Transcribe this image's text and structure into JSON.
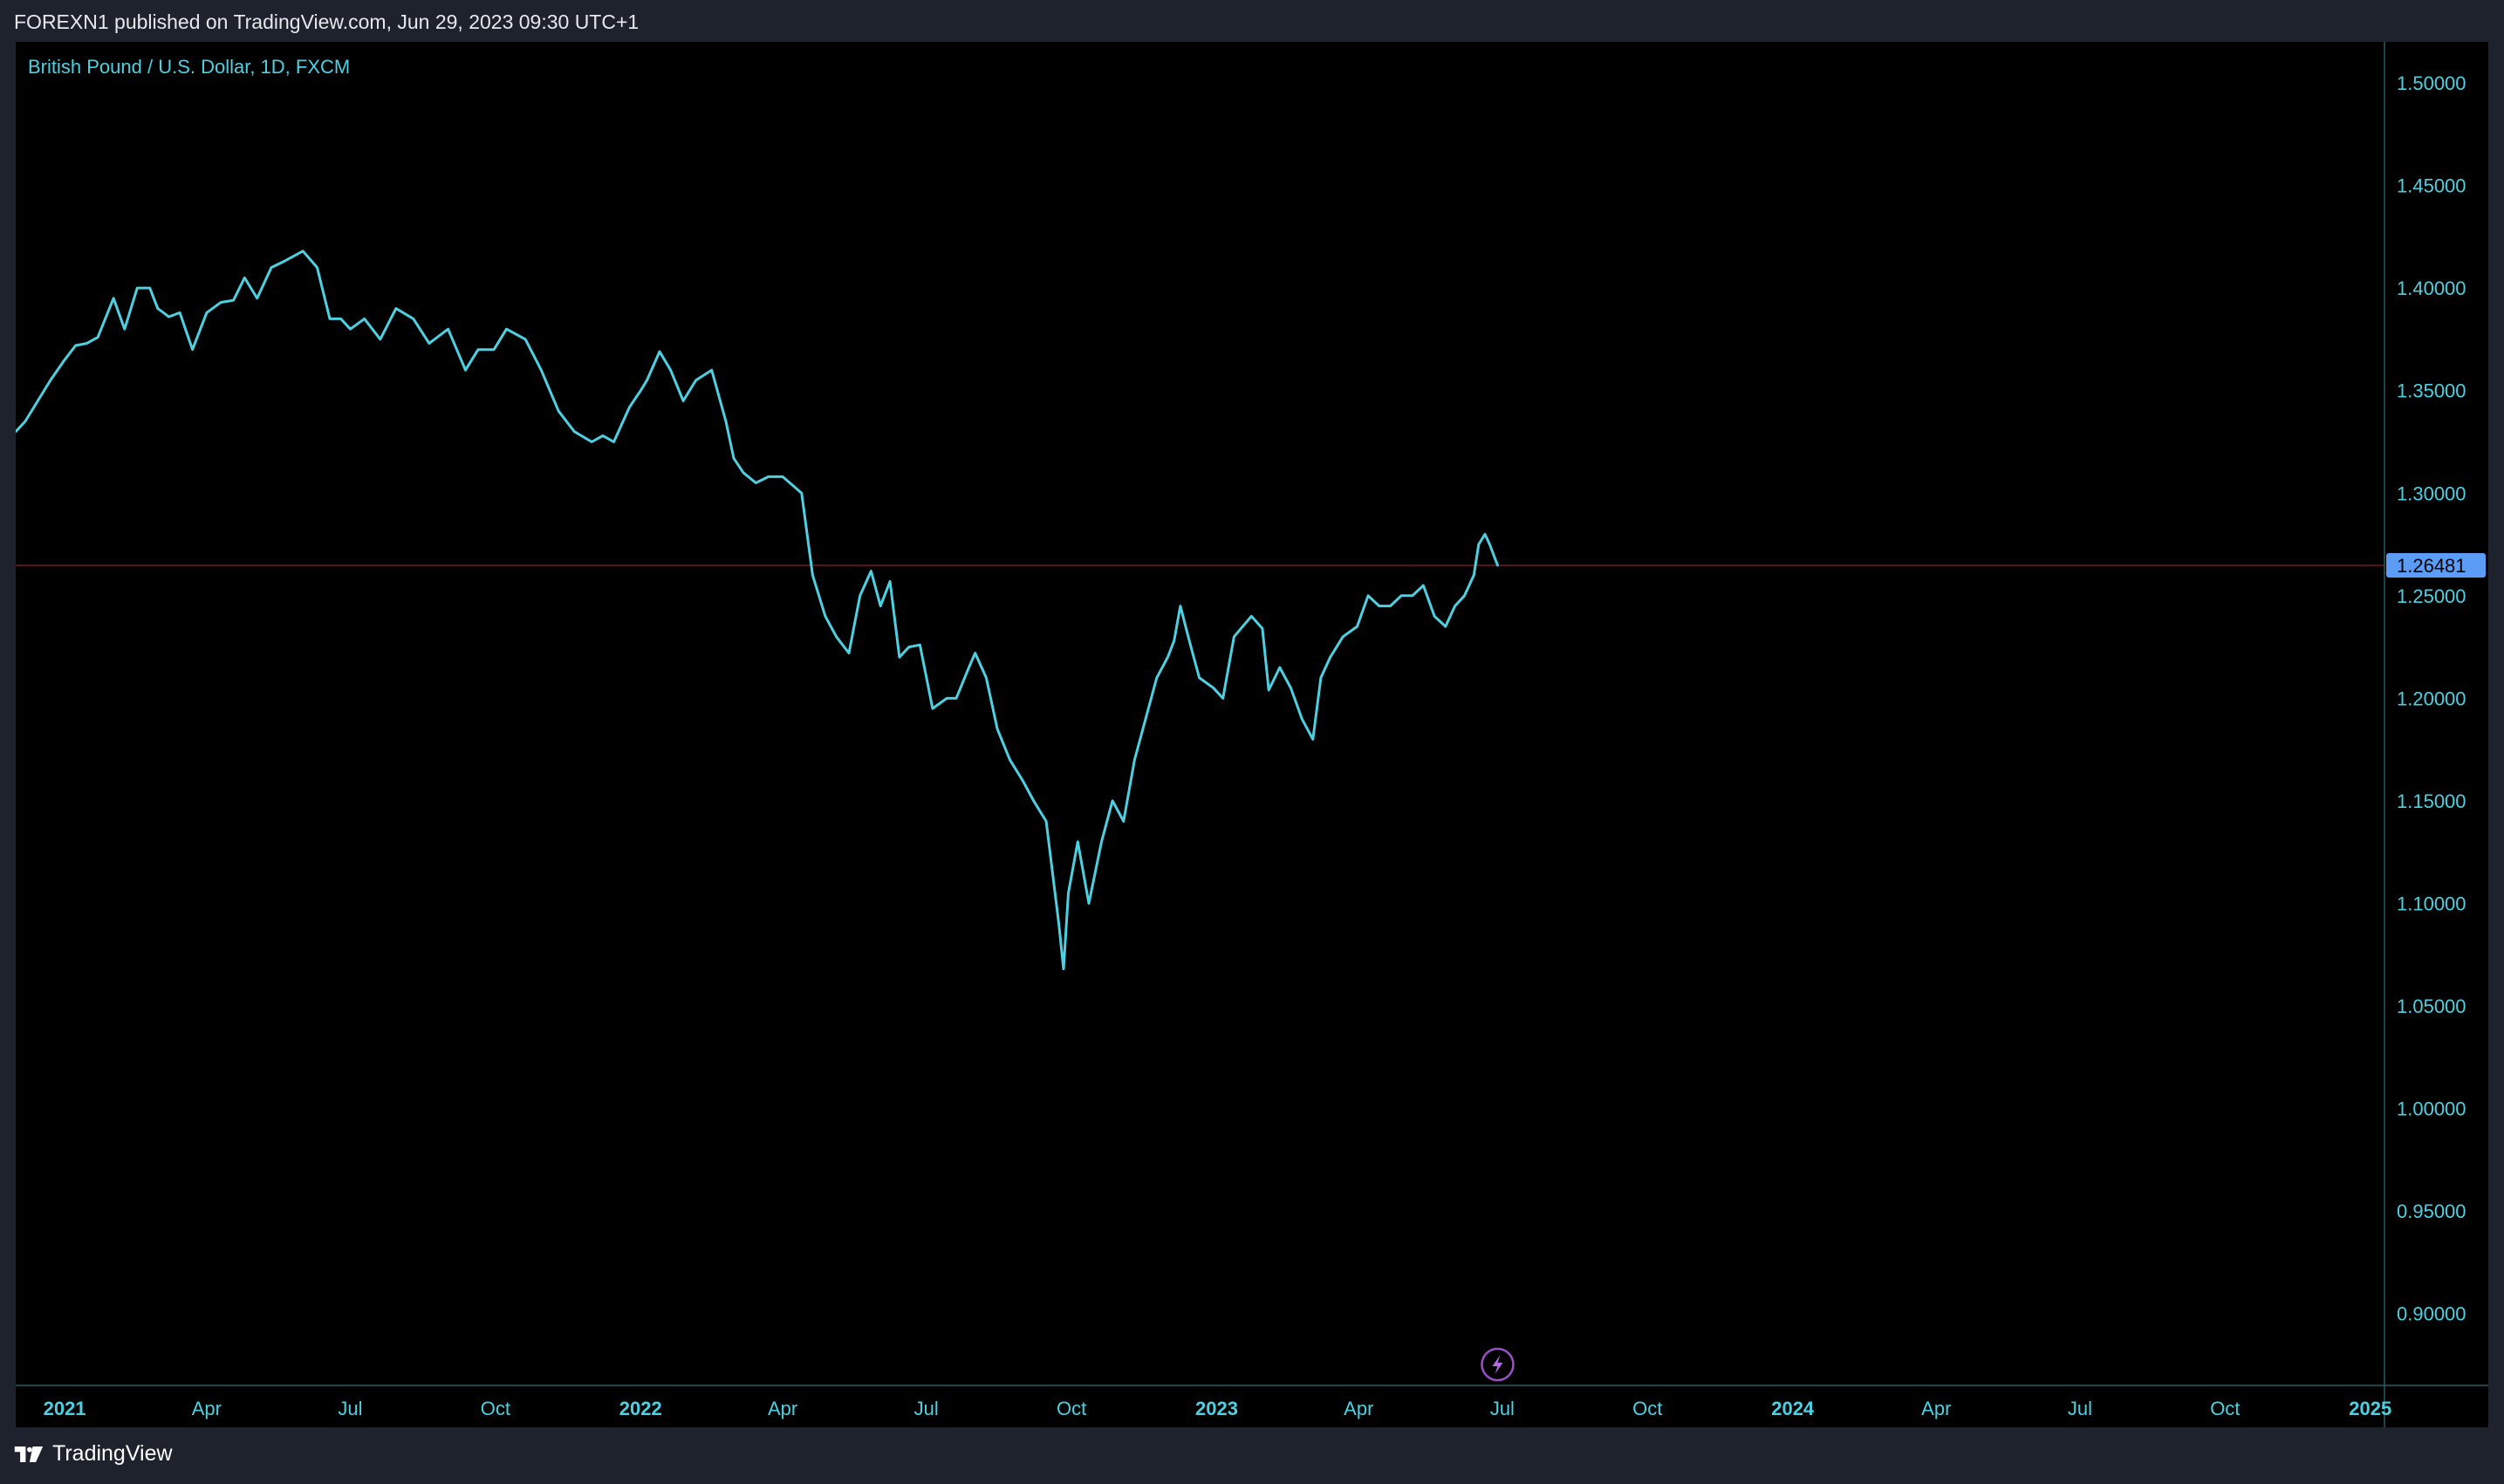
{
  "header": {
    "published_text": "FOREXN1 published on TradingView.com, Jun 29, 2023 09:30 UTC+1"
  },
  "footer": {
    "brand": "TradingView"
  },
  "colors": {
    "series": "#4dd0e1",
    "axis_text": "#4dd0e1",
    "price_label_bg": "#5b9cf6",
    "price_line": "#5a1414",
    "background": "#000000",
    "frame": "#1e222d"
  },
  "icons": {
    "event_marker": "lightning-icon",
    "brand_logo": "tradingview-logo-icon"
  },
  "chart_data": {
    "type": "line",
    "title": "British Pound / U.S. Dollar, 1D, FXCM",
    "xlabel": "",
    "ylabel": "",
    "xlim": [
      "2020-12-01",
      "2025-01-10"
    ],
    "ylim": [
      0.865,
      1.52
    ],
    "y_ticks": [
      "1.50000",
      "1.45000",
      "1.40000",
      "1.35000",
      "1.30000",
      "1.25000",
      "1.20000",
      "1.15000",
      "1.10000",
      "1.05000",
      "1.00000",
      "0.95000",
      "0.90000"
    ],
    "x_ticks": [
      {
        "label": "2021",
        "date": "2021-01-01",
        "year": true
      },
      {
        "label": "Apr",
        "date": "2021-04-01",
        "year": false
      },
      {
        "label": "Jul",
        "date": "2021-07-01",
        "year": false
      },
      {
        "label": "Oct",
        "date": "2021-10-01",
        "year": false
      },
      {
        "label": "2022",
        "date": "2022-01-01",
        "year": true
      },
      {
        "label": "Apr",
        "date": "2022-04-01",
        "year": false
      },
      {
        "label": "Jul",
        "date": "2022-07-01",
        "year": false
      },
      {
        "label": "Oct",
        "date": "2022-10-01",
        "year": false
      },
      {
        "label": "2023",
        "date": "2023-01-01",
        "year": true
      },
      {
        "label": "Apr",
        "date": "2023-04-01",
        "year": false
      },
      {
        "label": "Jul",
        "date": "2023-07-01",
        "year": false
      },
      {
        "label": "Oct",
        "date": "2023-10-01",
        "year": false
      },
      {
        "label": "2024",
        "date": "2024-01-01",
        "year": true
      },
      {
        "label": "Apr",
        "date": "2024-04-01",
        "year": false
      },
      {
        "label": "Jul",
        "date": "2024-07-01",
        "year": false
      },
      {
        "label": "Oct",
        "date": "2024-10-01",
        "year": false
      },
      {
        "label": "2025",
        "date": "2025-01-01",
        "year": true
      }
    ],
    "last_price": 1.26481,
    "last_price_label": "1.26481",
    "event_marker_date": "2023-06-28",
    "series": [
      {
        "x": [
          "2020-12-01",
          "2020-12-07",
          "2020-12-15",
          "2020-12-23",
          "2021-01-01",
          "2021-01-08",
          "2021-01-15",
          "2021-01-22",
          "2021-02-01",
          "2021-02-08",
          "2021-02-16",
          "2021-02-24",
          "2021-03-01",
          "2021-03-08",
          "2021-03-15",
          "2021-03-23",
          "2021-04-01",
          "2021-04-10",
          "2021-04-18",
          "2021-04-25",
          "2021-05-03",
          "2021-05-12",
          "2021-05-20",
          "2021-06-01",
          "2021-06-10",
          "2021-06-18",
          "2021-06-25",
          "2021-07-01",
          "2021-07-10",
          "2021-07-20",
          "2021-07-30",
          "2021-08-10",
          "2021-08-20",
          "2021-09-01",
          "2021-09-12",
          "2021-09-20",
          "2021-09-30",
          "2021-10-08",
          "2021-10-20",
          "2021-10-30",
          "2021-11-10",
          "2021-11-20",
          "2021-12-01",
          "2021-12-08",
          "2021-12-15",
          "2021-12-25",
          "2022-01-01",
          "2022-01-05",
          "2022-01-13",
          "2022-01-20",
          "2022-01-28",
          "2022-02-05",
          "2022-02-15",
          "2022-02-24",
          "2022-03-01",
          "2022-03-07",
          "2022-03-15",
          "2022-03-23",
          "2022-04-01",
          "2022-04-13",
          "2022-04-20",
          "2022-04-28",
          "2022-05-05",
          "2022-05-13",
          "2022-05-20",
          "2022-05-27",
          "2022-06-02",
          "2022-06-08",
          "2022-06-14",
          "2022-06-20",
          "2022-06-27",
          "2022-07-05",
          "2022-07-14",
          "2022-07-20",
          "2022-07-28",
          "2022-08-01",
          "2022-08-08",
          "2022-08-15",
          "2022-08-23",
          "2022-08-31",
          "2022-09-07",
          "2022-09-15",
          "2022-09-23",
          "2022-09-26",
          "2022-09-29",
          "2022-10-05",
          "2022-10-12",
          "2022-10-20",
          "2022-10-27",
          "2022-11-03",
          "2022-11-10",
          "2022-11-17",
          "2022-11-24",
          "2022-12-01",
          "2022-12-05",
          "2022-12-09",
          "2022-12-14",
          "2022-12-21",
          "2022-12-30",
          "2023-01-05",
          "2023-01-12",
          "2023-01-23",
          "2023-01-30",
          "2023-02-03",
          "2023-02-10",
          "2023-02-17",
          "2023-02-24",
          "2023-03-03",
          "2023-03-08",
          "2023-03-14",
          "2023-03-22",
          "2023-03-31",
          "2023-04-07",
          "2023-04-14",
          "2023-04-21",
          "2023-04-28",
          "2023-05-05",
          "2023-05-12",
          "2023-05-19",
          "2023-05-26",
          "2023-06-01",
          "2023-06-07",
          "2023-06-13",
          "2023-06-16",
          "2023-06-20",
          "2023-06-23",
          "2023-06-28"
        ],
        "y": [
          1.33,
          1.335,
          1.345,
          1.355,
          1.365,
          1.372,
          1.373,
          1.376,
          1.395,
          1.38,
          1.4,
          1.4,
          1.39,
          1.386,
          1.388,
          1.37,
          1.388,
          1.393,
          1.394,
          1.405,
          1.395,
          1.41,
          1.413,
          1.418,
          1.41,
          1.385,
          1.385,
          1.38,
          1.385,
          1.375,
          1.39,
          1.385,
          1.373,
          1.38,
          1.36,
          1.37,
          1.37,
          1.38,
          1.375,
          1.36,
          1.34,
          1.33,
          1.325,
          1.328,
          1.325,
          1.342,
          1.35,
          1.355,
          1.369,
          1.36,
          1.345,
          1.355,
          1.36,
          1.335,
          1.317,
          1.31,
          1.305,
          1.308,
          1.308,
          1.3,
          1.26,
          1.24,
          1.23,
          1.222,
          1.25,
          1.262,
          1.245,
          1.257,
          1.22,
          1.225,
          1.226,
          1.195,
          1.2,
          1.2,
          1.215,
          1.222,
          1.21,
          1.185,
          1.17,
          1.16,
          1.15,
          1.14,
          1.09,
          1.068,
          1.105,
          1.13,
          1.1,
          1.13,
          1.15,
          1.14,
          1.17,
          1.19,
          1.21,
          1.22,
          1.228,
          1.245,
          1.23,
          1.21,
          1.205,
          1.2,
          1.23,
          1.24,
          1.234,
          1.204,
          1.215,
          1.205,
          1.19,
          1.18,
          1.21,
          1.22,
          1.23,
          1.235,
          1.25,
          1.245,
          1.245,
          1.25,
          1.25,
          1.255,
          1.24,
          1.235,
          1.245,
          1.25,
          1.26,
          1.275,
          1.28,
          1.275,
          1.2648
        ]
      }
    ]
  }
}
